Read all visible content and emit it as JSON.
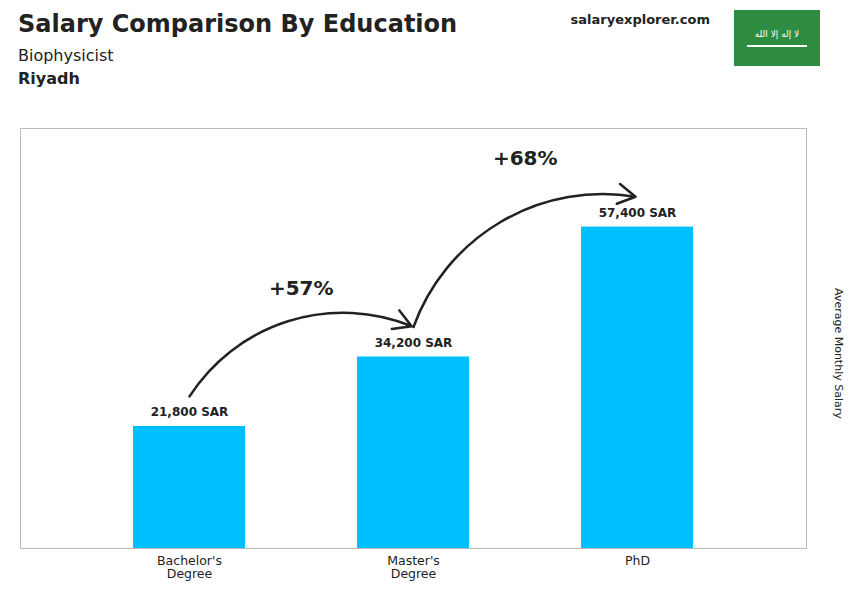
{
  "chart_data": {
    "type": "bar",
    "title": "Salary Comparison By Education",
    "subtitle": [
      "Biophysicist",
      "Riyadh"
    ],
    "source": "salaryexplorer.com",
    "flag_text": "لا إله إلا الله",
    "categories": [
      "Bachelor's\nDegree",
      "Master's\nDegree",
      "PhD"
    ],
    "values": [
      21800,
      34200,
      57400
    ],
    "value_labels": [
      "21,800 SAR",
      "34,200 SAR",
      "57,400 SAR"
    ],
    "data_labels": true,
    "annotations": [
      "+57%",
      "+68%"
    ],
    "color": "#00BFFF",
    "ylabel": "Average Monthly Salary",
    "ylim": [
      0,
      75000
    ],
    "tick_labels": "x",
    "grid": false
  }
}
